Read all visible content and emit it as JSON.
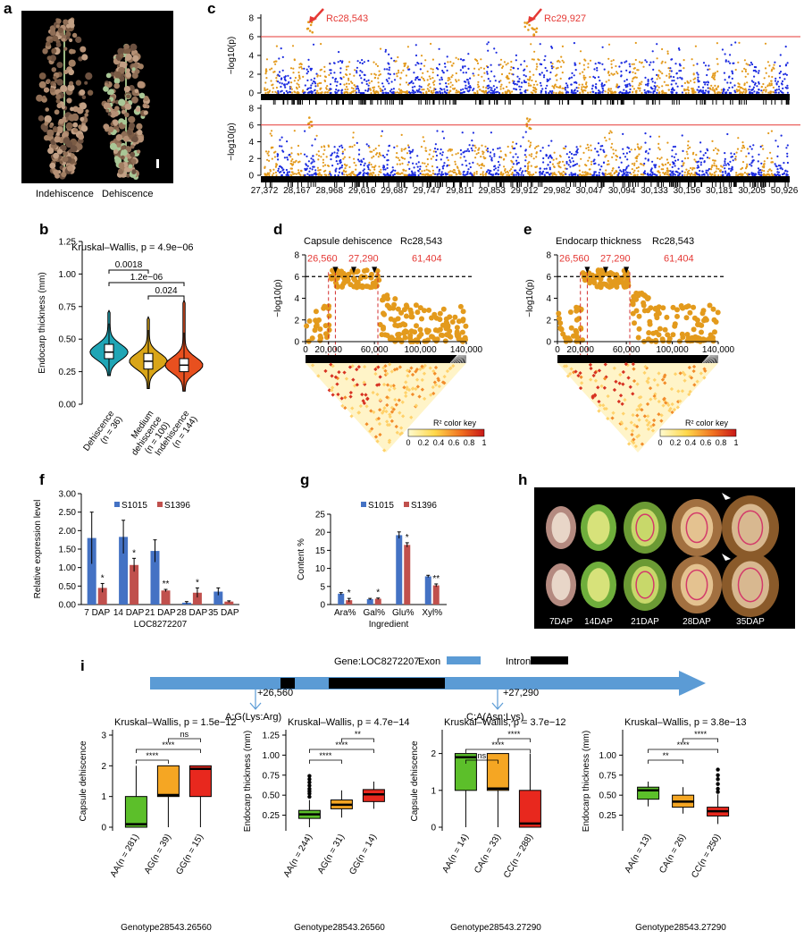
{
  "panel_labels": {
    "a": "a",
    "b": "b",
    "c": "c",
    "d": "d",
    "e": "e",
    "f": "f",
    "g": "g",
    "h": "h",
    "i": "i"
  },
  "panel_a": {
    "left": "Indehiscence",
    "right": "Dehiscence"
  },
  "chart_data": [
    {
      "id": "c",
      "type": "scatter",
      "ylabel": "−log10(p)",
      "ylim": [
        0,
        8
      ],
      "yticks": [
        "0",
        "2",
        "4",
        "6",
        "8"
      ],
      "threshold": 6,
      "xticks": [
        "27,372",
        "28,167",
        "28,968",
        "29,616",
        "29,687",
        "29,747",
        "29,811",
        "29,853",
        "29,912",
        "29,982",
        "30,047",
        "30,094",
        "30,133",
        "30,156",
        "30,181",
        "30,205",
        "50,926"
      ],
      "annotations": [
        "Rc28,543",
        "Rc29,927"
      ],
      "colors": {
        "a": "#e39a1c",
        "b": "#1b2be0",
        "line": "#e53935"
      }
    },
    {
      "id": "b",
      "type": "violin",
      "ylabel": "Endocarp thickness (mm)",
      "ylim": [
        0,
        1.25
      ],
      "yticks": [
        "0.00",
        "0.25",
        "0.50",
        "0.75",
        "1.00",
        "1.25"
      ],
      "test": "Kruskal–Wallis, p = 4.9e−06",
      "pvalues": [
        "0.0018",
        "1.2e−06",
        "0.024"
      ],
      "categories": [
        "Dehiscence (n = 36)",
        "Medium dehiscence (n = 100)",
        "Indehiscence (n = 144)"
      ],
      "cat_lines": [
        [
          "Dehiscence",
          "(n = 36)"
        ],
        [
          "Medium",
          "dehiscence",
          "(n = 100)"
        ],
        [
          "Indehiscence",
          "(n = 144)"
        ]
      ],
      "medians": [
        0.4,
        0.33,
        0.3
      ],
      "q1": [
        0.35,
        0.27,
        0.25
      ],
      "q3": [
        0.46,
        0.39,
        0.35
      ],
      "min": [
        0.22,
        0.12,
        0.1
      ],
      "max": [
        0.62,
        0.57,
        0.55
      ],
      "colors": [
        "#1fa5b5",
        "#d9a518",
        "#e8501f"
      ]
    },
    {
      "id": "d",
      "type": "scatter",
      "title": "Capsule dehiscence",
      "locus": "Rc28,543",
      "ylabel": "−log10(p)",
      "ylim": [
        0,
        8
      ],
      "yticks": [
        "0",
        "2",
        "4",
        "6",
        "8"
      ],
      "threshold": 6,
      "xlim": [
        0,
        140000
      ],
      "xticks": [
        "0",
        "20,000",
        "60,000",
        "100,000",
        "140,000"
      ],
      "markers": [
        "26,560",
        "27,290",
        "61,404"
      ],
      "legend": "R² color key",
      "key_ticks": [
        "0",
        "0.2",
        "0.4",
        "0.6",
        "0.8",
        "1"
      ]
    },
    {
      "id": "e",
      "type": "scatter",
      "title": "Endocarp thickness",
      "locus": "Rc28,543",
      "ylabel": "−log10(p)",
      "ylim": [
        0,
        8
      ],
      "yticks": [
        "0",
        "2",
        "4",
        "6",
        "8"
      ],
      "threshold": 6,
      "xlim": [
        0,
        140000
      ],
      "xticks": [
        "0",
        "20,000",
        "60,000",
        "100,000",
        "140,000"
      ],
      "markers": [
        "26,560",
        "27,290",
        "61,404"
      ],
      "legend": "R² color key",
      "key_ticks": [
        "0",
        "0.2",
        "0.4",
        "0.6",
        "0.8",
        "1"
      ]
    },
    {
      "id": "f",
      "type": "bar",
      "ylabel": "Relative expression level",
      "xlabel": "LOC8272207",
      "ylim": [
        0,
        3
      ],
      "yticks": [
        "0.00",
        "0.50",
        "1.00",
        "1.50",
        "2.00",
        "2.50",
        "3.00"
      ],
      "categories": [
        "7 DAP",
        "14 DAP",
        "21 DAP",
        "28 DAP",
        "35 DAP"
      ],
      "series": [
        {
          "name": "S1015",
          "values": [
            1.8,
            1.83,
            1.45,
            0.05,
            0.35
          ],
          "err": [
            0.7,
            0.45,
            0.3,
            0.03,
            0.1
          ],
          "color": "#4472c4"
        },
        {
          "name": "S1396",
          "values": [
            0.45,
            1.07,
            0.38,
            0.32,
            0.08
          ],
          "err": [
            0.12,
            0.18,
            0.03,
            0.13,
            0.02
          ],
          "color": "#c0504d"
        }
      ],
      "sig": [
        "*",
        "*",
        "**",
        "*",
        ""
      ]
    },
    {
      "id": "g",
      "type": "bar",
      "ylabel": "Content %",
      "xlabel": "Ingredient",
      "ylim": [
        0,
        25
      ],
      "yticks": [
        "0",
        "5",
        "10",
        "15",
        "20",
        "25"
      ],
      "categories": [
        "Ara%",
        "Gal%",
        "Glu%",
        "Xyl%"
      ],
      "series": [
        {
          "name": "S1015",
          "values": [
            3.0,
            1.5,
            19.2,
            7.8
          ],
          "err": [
            0.3,
            0.2,
            0.9,
            0.3
          ],
          "color": "#4472c4"
        },
        {
          "name": "S1396",
          "values": [
            1.2,
            1.6,
            16.5,
            5.3
          ],
          "err": [
            0.5,
            0.2,
            0.6,
            0.4
          ],
          "color": "#c0504d"
        }
      ],
      "sig": [
        "*",
        "*",
        "*",
        "**"
      ]
    },
    {
      "id": "i1",
      "type": "box",
      "test": "Kruskal–Wallis, p = 1.5e−12",
      "ylabel": "Capsule dehiscence",
      "xlabel": "Genotype28543.26560",
      "ylim": [
        0,
        3
      ],
      "yticks": [
        "0",
        "1",
        "2",
        "3"
      ],
      "categories": [
        "AA(n = 281)",
        "AG(n = 39)",
        "GG(n = 15)"
      ],
      "q1": [
        0,
        1,
        1
      ],
      "median": [
        0.1,
        1.05,
        1.9
      ],
      "q3": [
        1,
        2,
        2
      ],
      "min": [
        0,
        0,
        0
      ],
      "max": [
        2,
        2,
        2
      ],
      "sig": [
        "****",
        "****",
        "ns"
      ],
      "colors": [
        "#5cbf2a",
        "#f5a623",
        "#e8281e"
      ]
    },
    {
      "id": "i2",
      "type": "box",
      "test": "Kruskal–Wallis, p = 4.7e−14",
      "ylabel": "Endocarp thickness (mm)",
      "xlabel": "Genotype28543.26560",
      "ylim": [
        0.1,
        1.25
      ],
      "yticks": [
        "0.25",
        "0.50",
        "0.75",
        "1.00",
        "1.25"
      ],
      "categories": [
        "AA(n = 244)",
        "AG(n = 31)",
        "GG(n = 14)"
      ],
      "q1": [
        0.21,
        0.33,
        0.42
      ],
      "median": [
        0.26,
        0.38,
        0.51
      ],
      "q3": [
        0.31,
        0.44,
        0.57
      ],
      "min": [
        0.1,
        0.22,
        0.33
      ],
      "max": [
        0.44,
        0.56,
        0.67
      ],
      "outliers": [
        [
          0.74,
          0.7,
          0.66,
          0.62,
          0.58,
          0.55,
          0.52,
          0.48
        ],
        [],
        []
      ],
      "sig": [
        "****",
        "****",
        "**"
      ],
      "colors": [
        "#5cbf2a",
        "#f5a623",
        "#e8281e"
      ]
    },
    {
      "id": "i3",
      "type": "box",
      "test": "Kruskal–Wallis, p = 3.7e−12",
      "ylabel": "Capsule dehiscence",
      "xlabel": "Genotype28543.27290",
      "ylim": [
        0,
        2.5
      ],
      "yticks": [
        "0",
        "1",
        "2"
      ],
      "categories": [
        "AA(n = 14)",
        "CA(n = 33)",
        "CC(n = 288)"
      ],
      "q1": [
        1,
        1,
        0
      ],
      "median": [
        1.9,
        1.05,
        0.1
      ],
      "q3": [
        2,
        2,
        1
      ],
      "min": [
        0,
        0,
        0
      ],
      "max": [
        2,
        2,
        2
      ],
      "sig": [
        "ns",
        "****",
        "****"
      ],
      "colors": [
        "#5cbf2a",
        "#f5a623",
        "#e8281e"
      ]
    },
    {
      "id": "i4",
      "type": "box",
      "test": "Kruskal–Wallis, p = 3.8e−13",
      "ylabel": "Endocarp thickness (mm)",
      "xlabel": "Genotype28543.27290",
      "ylim": [
        0.1,
        1.25
      ],
      "yticks": [
        "0.25",
        "0.50",
        "0.75",
        "1.00"
      ],
      "categories": [
        "AA(n = 13)",
        "CA(n = 26)",
        "CC(n = 250)"
      ],
      "q1": [
        0.45,
        0.35,
        0.24
      ],
      "median": [
        0.56,
        0.42,
        0.3
      ],
      "q3": [
        0.6,
        0.5,
        0.35
      ],
      "min": [
        0.36,
        0.27,
        0.14
      ],
      "max": [
        0.67,
        0.6,
        0.51
      ],
      "outliers": [
        [],
        [],
        [
          0.82,
          0.75,
          0.7,
          0.64,
          0.58,
          0.54
        ]
      ],
      "sig": [
        "**",
        "****",
        "****"
      ],
      "colors": [
        "#5cbf2a",
        "#f5a623",
        "#e8281e"
      ]
    }
  ],
  "panel_h": {
    "labels": [
      "7DAP",
      "14DAP",
      "21DAP",
      "28DAP",
      "35DAP"
    ]
  },
  "panel_i_gene": {
    "gene": "Gene:LOC8272207",
    "exon": "Exon",
    "intron": "Intron",
    "snp1_pos": "+26,560",
    "snp1": "A:G(Lys:Arg)",
    "snp2_pos": "+27,290",
    "snp2": "C:A(Asn:Lys)",
    "colors": {
      "exon": "#5b9bd5",
      "intron": "#000000"
    }
  }
}
